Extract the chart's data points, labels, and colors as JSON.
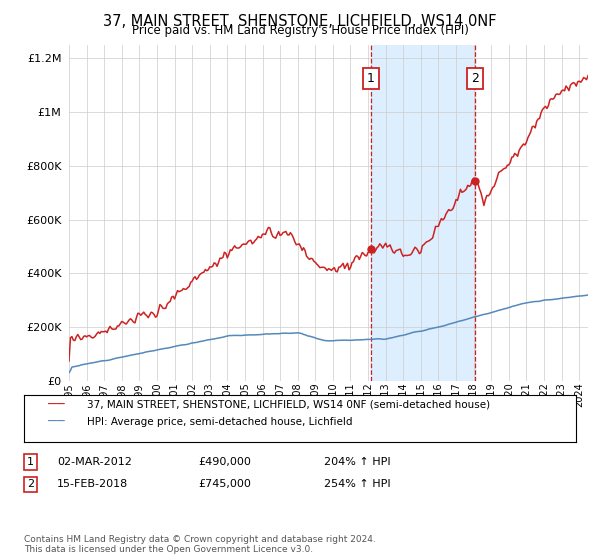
{
  "title": "37, MAIN STREET, SHENSTONE, LICHFIELD, WS14 0NF",
  "subtitle": "Price paid vs. HM Land Registry's House Price Index (HPI)",
  "hpi_label": "HPI: Average price, semi-detached house, Lichfield",
  "property_label": "37, MAIN STREET, SHENSTONE, LICHFIELD, WS14 0NF (semi-detached house)",
  "sale1_date": "02-MAR-2012",
  "sale1_price": 490000,
  "sale1_hpi": "204%",
  "sale2_date": "15-FEB-2018",
  "sale2_price": 745000,
  "sale2_hpi": "254%",
  "footer": "Contains HM Land Registry data © Crown copyright and database right 2024.\nThis data is licensed under the Open Government Licence v3.0.",
  "hpi_color": "#5588bb",
  "property_color": "#cc2222",
  "sale_vline_color": "#cc2222",
  "shade_color": "#ddeeff",
  "ylim_max": 1250000,
  "ylim_min": 0,
  "background_color": "#ffffff"
}
